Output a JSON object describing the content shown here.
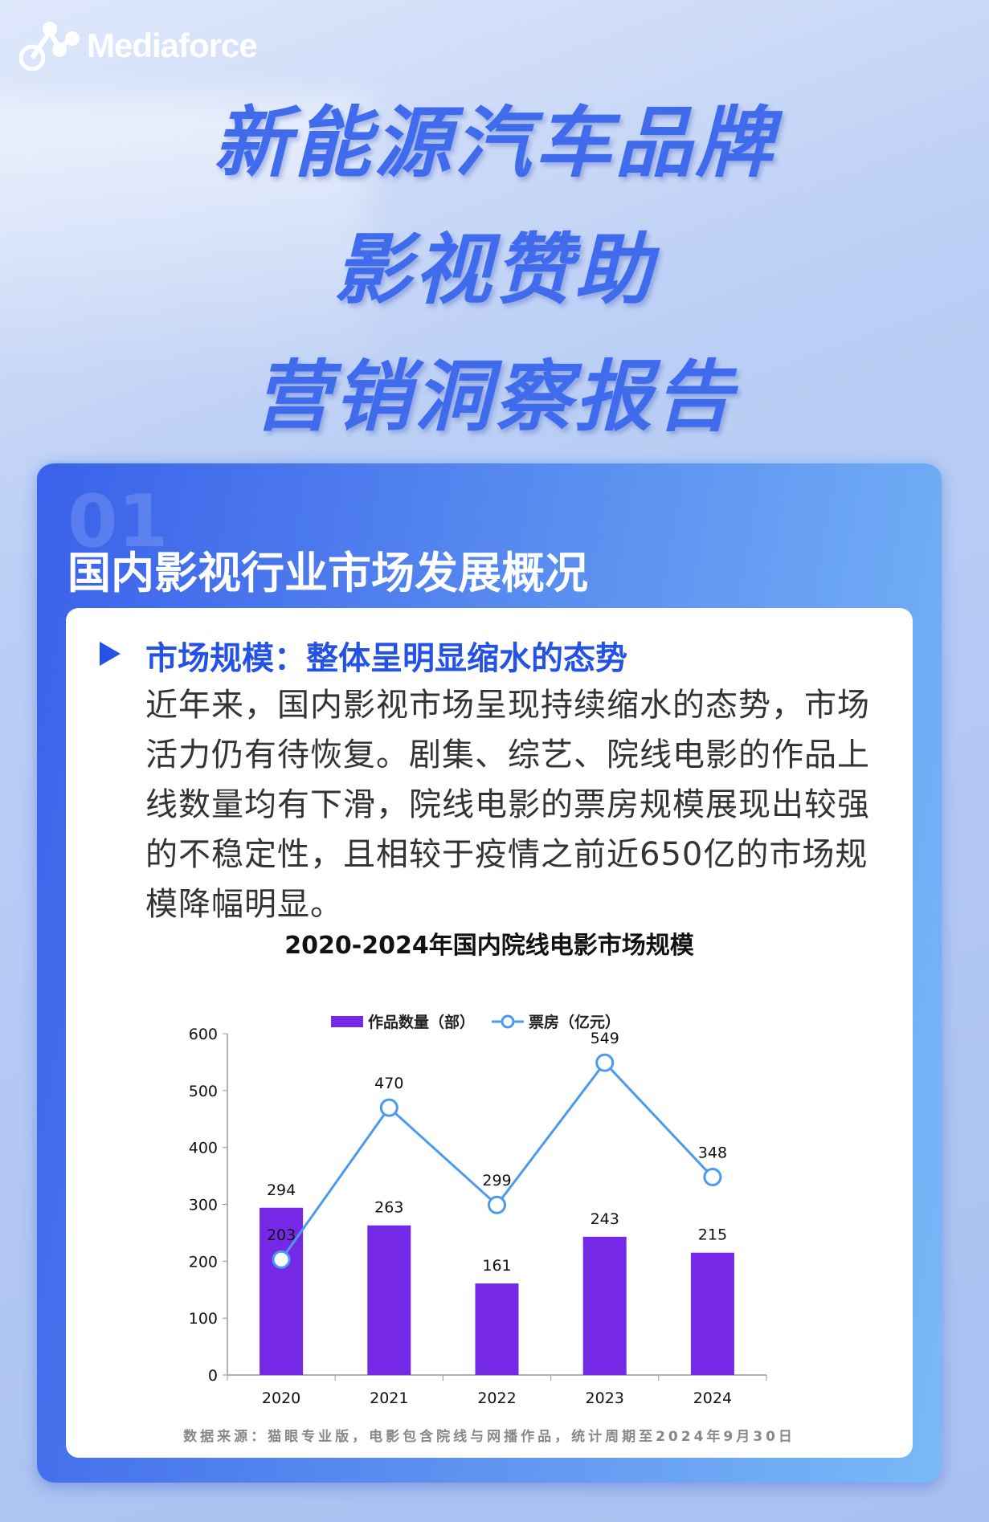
{
  "brand": {
    "logo_text": "Mediaforce"
  },
  "title_lines": [
    "新能源汽车品牌",
    "影视赞助",
    "营销洞察报告"
  ],
  "section": {
    "number": "01",
    "title": "国内影视行业市场发展概况"
  },
  "content": {
    "heading": "市场规模：整体呈明显缩水的态势",
    "paragraph": "近年来，国内影视市场呈现持续缩水的态势，市场活力仍有待恢复。剧集、综艺、院线电影的作品上线数量均有下滑，院线电影的票房规模展现出较强的不稳定性，且相较于疫情之前近650亿的市场规模降幅明显。",
    "source": "数据来源：猫眼专业版，电影包含院线与网播作品，统计周期至2024年9月30日"
  },
  "chart_data": {
    "type": "bar",
    "title": "2020-2024年国内院线电影市场规模",
    "categories": [
      "2020",
      "2021",
      "2022",
      "2023",
      "2024"
    ],
    "series": [
      {
        "name": "作品数量（部）",
        "type": "bar",
        "values": [
          294,
          263,
          161,
          243,
          215
        ],
        "color": "#7529e6"
      },
      {
        "name": "票房（亿元）",
        "type": "line",
        "values": [
          203,
          470,
          299,
          549,
          348
        ],
        "color": "#4a9af0"
      }
    ],
    "ylim": [
      0,
      600
    ],
    "yticks": [
      0,
      100,
      200,
      300,
      400,
      500,
      600
    ],
    "grid": false,
    "legend": "top-center"
  }
}
